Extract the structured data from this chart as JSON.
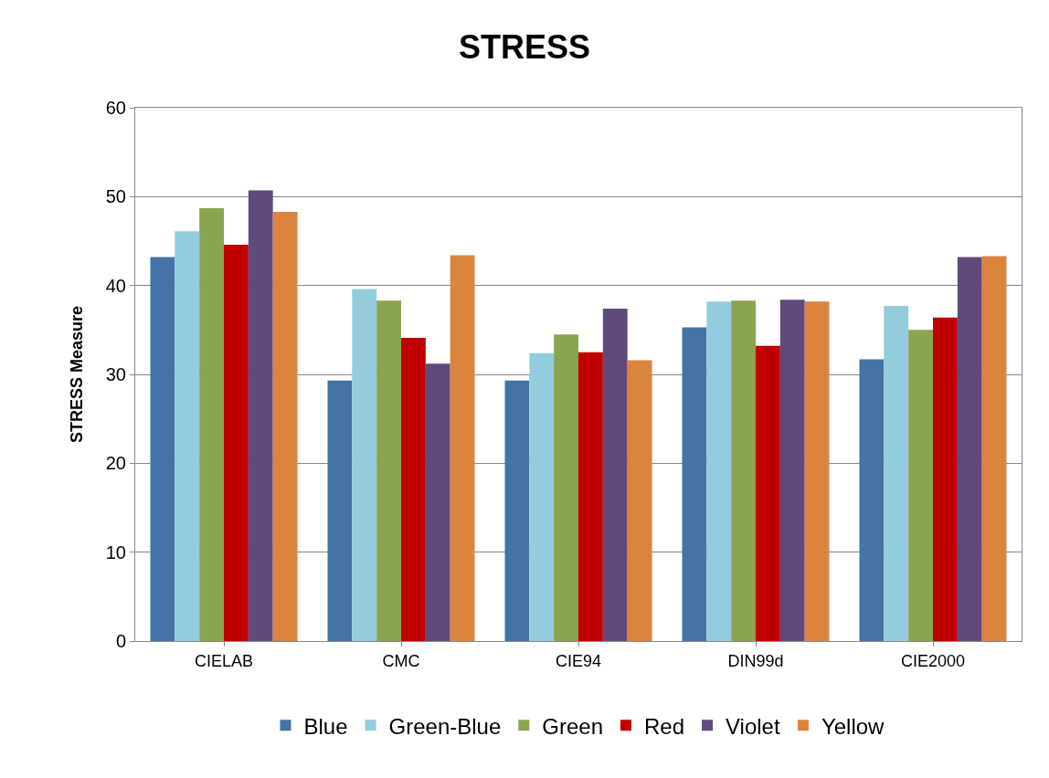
{
  "chart_data": {
    "type": "bar",
    "title": "STRESS",
    "ylabel": "STRESS Measure",
    "categories": [
      "CIELAB",
      "CMC",
      "CIE94",
      "DIN99d",
      "CIE2000"
    ],
    "series": [
      {
        "name": "Blue",
        "color": "#4572a7",
        "values": [
          43.2,
          29.3,
          29.3,
          35.3,
          31.7
        ]
      },
      {
        "name": "Green-Blue",
        "color": "#93cddd",
        "values": [
          46.1,
          39.6,
          32.4,
          38.2,
          37.7
        ]
      },
      {
        "name": "Green",
        "color": "#89a54e",
        "values": [
          48.7,
          38.3,
          34.5,
          38.3,
          35.0
        ]
      },
      {
        "name": "Red",
        "color": "#c00000",
        "values": [
          44.6,
          34.1,
          32.5,
          33.2,
          36.4
        ]
      },
      {
        "name": "Violet",
        "color": "#604a7b",
        "values": [
          50.7,
          31.2,
          37.4,
          38.4,
          43.2
        ]
      },
      {
        "name": "Yellow",
        "color": "#db843d",
        "values": [
          48.3,
          43.4,
          31.6,
          38.2,
          43.3
        ]
      }
    ],
    "ylim": [
      0,
      60
    ],
    "yticks": [
      0,
      10,
      20,
      30,
      40,
      50,
      60
    ],
    "grid": "y",
    "legend": "bottom"
  }
}
